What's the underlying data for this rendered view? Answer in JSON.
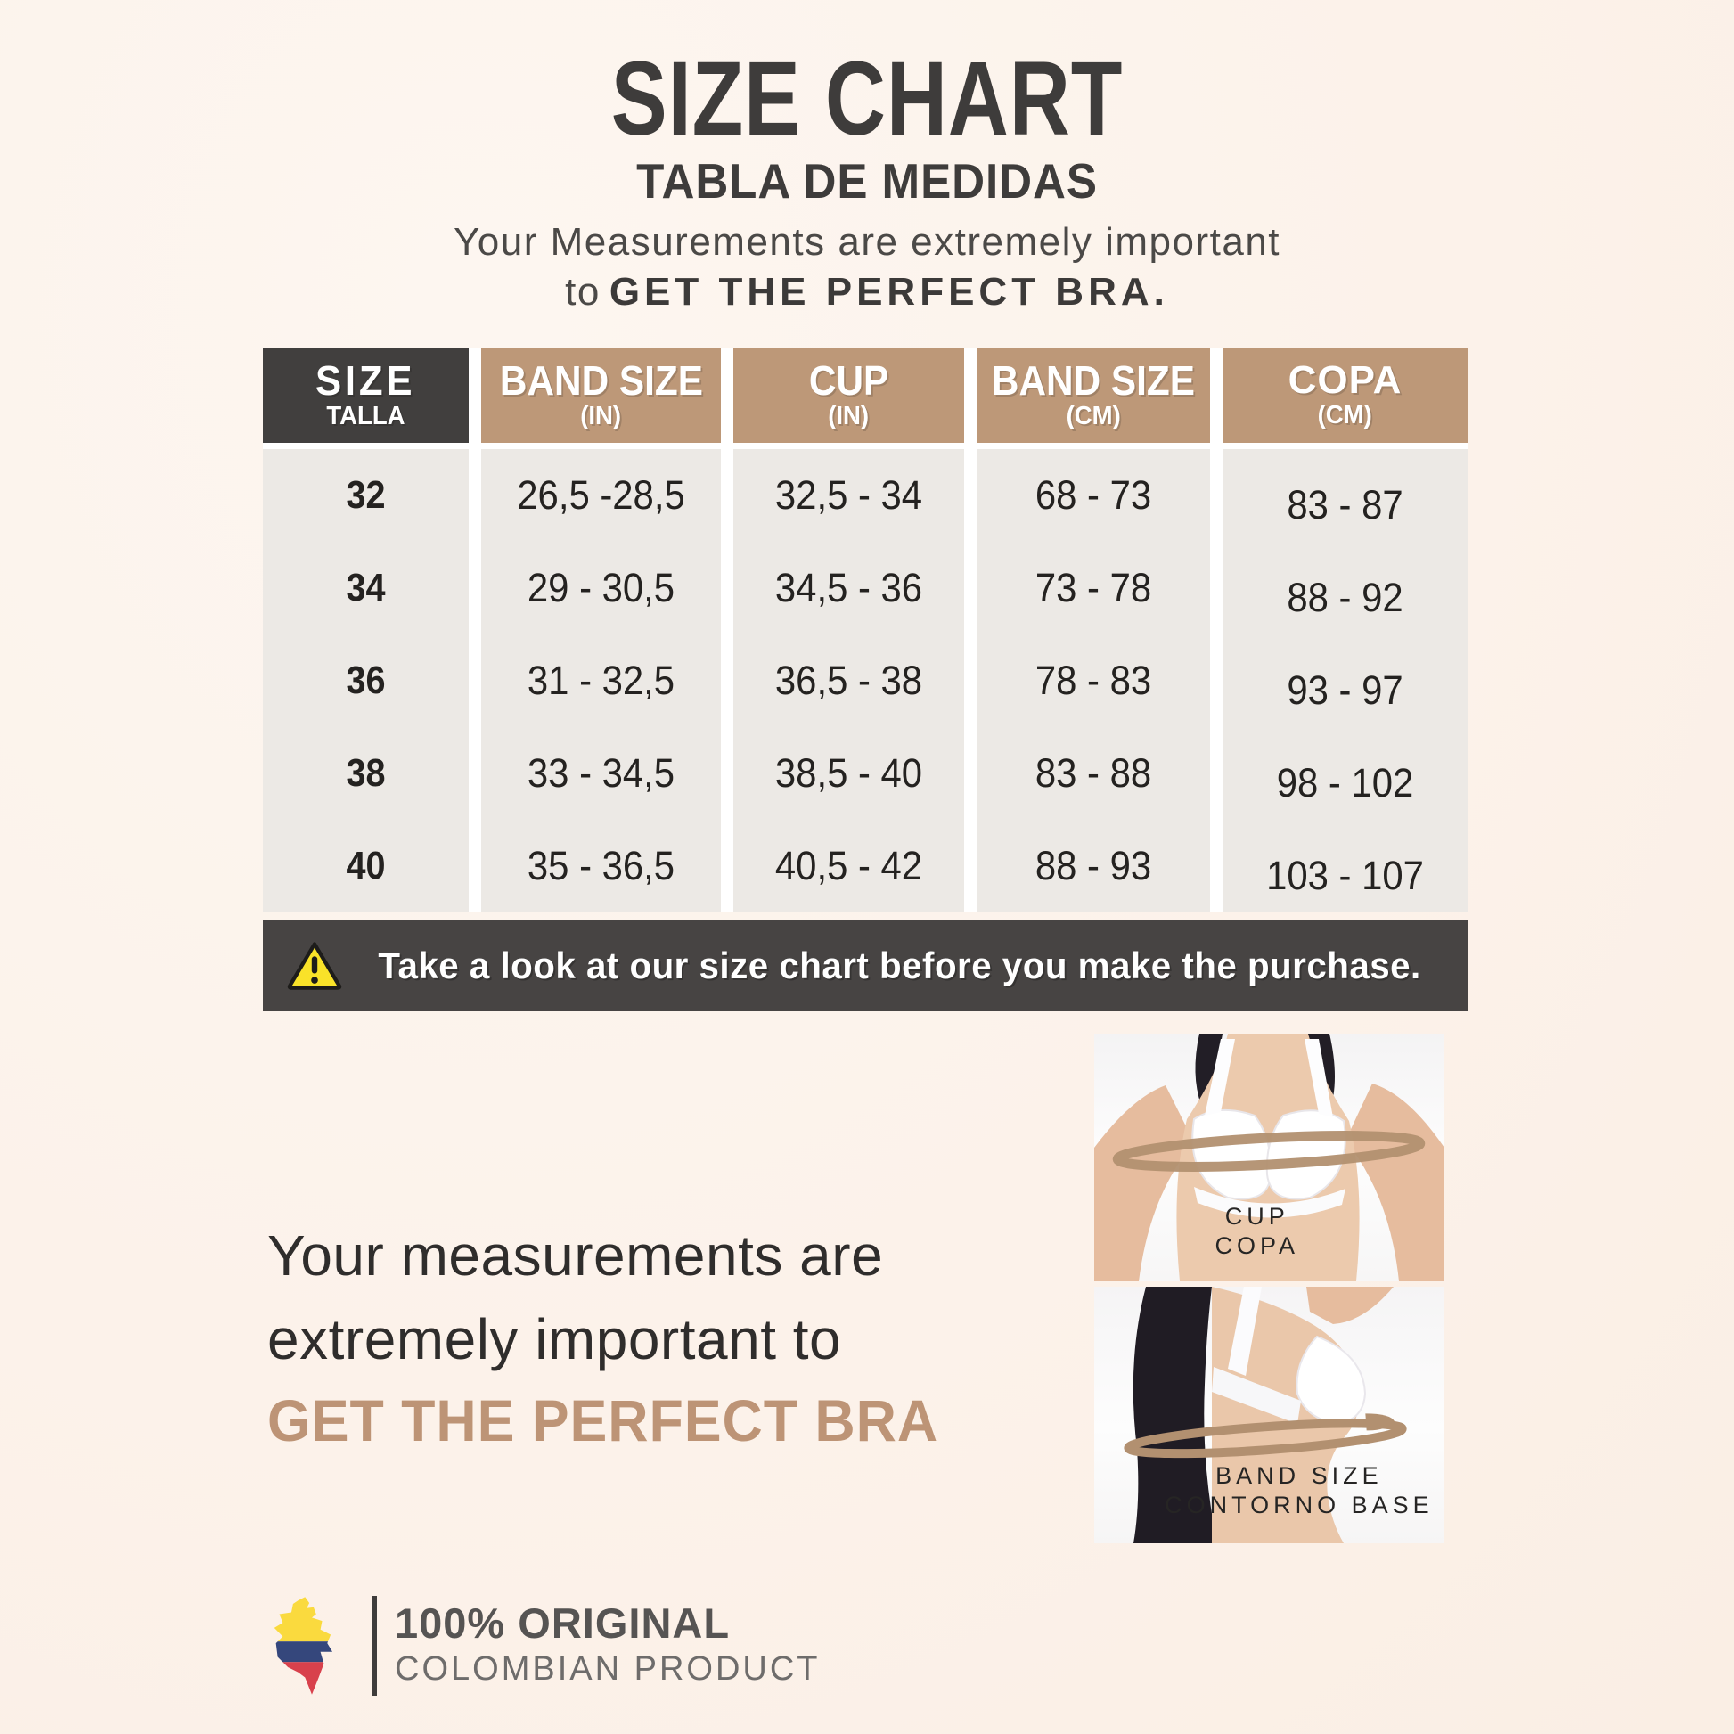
{
  "title": {
    "main": "SIZE CHART",
    "sub": "TABLA DE MEDIDAS"
  },
  "intro": {
    "line1": "Your Measurements are extremely important",
    "line2_prefix": "to",
    "line2_bold": "GET THE PERFECT BRA."
  },
  "table": {
    "columns": [
      {
        "label": "SIZE",
        "sublabel": "TALLA"
      },
      {
        "label": "BAND SIZE",
        "sublabel": "(IN)"
      },
      {
        "label": "CUP",
        "sublabel": "(IN)"
      },
      {
        "label": "BAND SIZE",
        "sublabel": "(CM)"
      },
      {
        "label": "COPA",
        "sublabel": "(CM)"
      }
    ],
    "rows": [
      [
        "32",
        "26,5 -28,5",
        "32,5 - 34",
        "68 - 73",
        "83 - 87"
      ],
      [
        "34",
        "29 - 30,5",
        "34,5 - 36",
        "73 - 78",
        "88 - 92"
      ],
      [
        "36",
        "31 - 32,5",
        "36,5 - 38",
        "78 - 83",
        "93 - 97"
      ],
      [
        "38",
        "33 - 34,5",
        "38,5 - 40",
        "83 - 88",
        "98 - 102"
      ],
      [
        "40",
        "35 - 36,5",
        "40,5 - 42",
        "88 - 93",
        "103 - 107"
      ]
    ]
  },
  "warning": {
    "icon": "warning-triangle-icon",
    "text": "Take a look at our size chart before you make the purchase."
  },
  "note": {
    "line1": "Your measurements are",
    "line2": "extremely important to",
    "line3": "GET THE PERFECT BRA"
  },
  "photos": {
    "cup": {
      "label1": "CUP",
      "label2": "COPA"
    },
    "band": {
      "label1": "BAND SIZE",
      "label2": "CONTORNO BASE"
    }
  },
  "footer": {
    "line1": "100% ORIGINAL",
    "line2": "COLOMBIAN PRODUCT"
  },
  "colors": {
    "background": "#fcf3ec",
    "dark_gray": "#413f3e",
    "tan_header": "#bd9878",
    "cell_gray": "#ece9e5",
    "tan_text": "#bd9476",
    "warning_yellow": "#f9e229",
    "measuring_band": "#b29070",
    "flag_yellow": "#fada3e",
    "flag_blue": "#35477c",
    "flag_red": "#d8414c"
  },
  "chart_data": {
    "type": "table",
    "title": "SIZE CHART / TABLA DE MEDIDAS",
    "columns": [
      "SIZE TALLA",
      "BAND SIZE (IN)",
      "CUP (IN)",
      "BAND SIZE (CM)",
      "COPA (CM)"
    ],
    "rows": [
      [
        "32",
        "26,5 -28,5",
        "32,5 - 34",
        "68 - 73",
        "83 - 87"
      ],
      [
        "34",
        "29 - 30,5",
        "34,5 - 36",
        "73 - 78",
        "88 - 92"
      ],
      [
        "36",
        "31 - 32,5",
        "36,5 - 38",
        "78 - 83",
        "93 - 97"
      ],
      [
        "38",
        "33 - 34,5",
        "38,5 - 40",
        "83 - 88",
        "98 - 102"
      ],
      [
        "40",
        "35 - 36,5",
        "40,5 - 42",
        "88 - 93",
        "103 - 107"
      ]
    ]
  }
}
